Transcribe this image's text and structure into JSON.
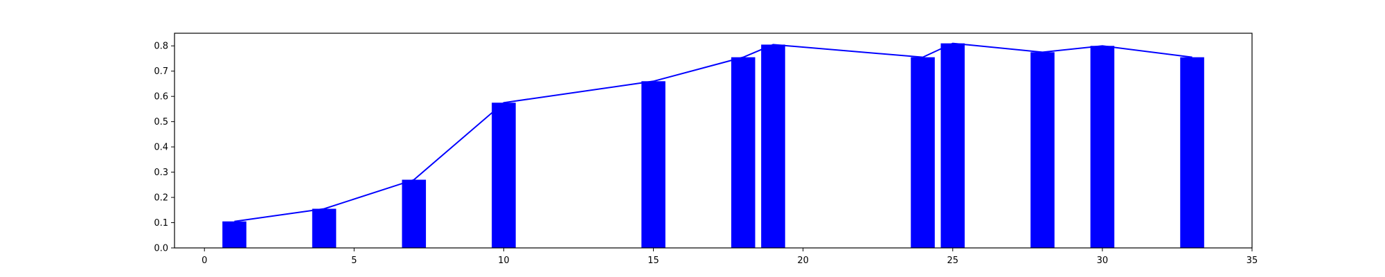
{
  "chart_data": {
    "type": "bar",
    "title": "",
    "xlabel": "",
    "ylabel": "",
    "xlim": [
      -1,
      35
    ],
    "ylim": [
      0,
      0.85
    ],
    "grid": false,
    "x_ticks": [
      0,
      5,
      10,
      15,
      20,
      25,
      30,
      35
    ],
    "y_ticks": [
      0.0,
      0.1,
      0.2,
      0.3,
      0.4,
      0.5,
      0.6,
      0.7,
      0.8
    ],
    "x_tick_labels": [
      "0",
      "5",
      "10",
      "15",
      "20",
      "25",
      "30",
      "35"
    ],
    "y_tick_labels": [
      "0.0",
      "0.1",
      "0.2",
      "0.3",
      "0.4",
      "0.5",
      "0.6",
      "0.7",
      "0.8"
    ],
    "bar_width": 0.8,
    "x": [
      1,
      4,
      7,
      10,
      15,
      18,
      19,
      24,
      25,
      28,
      30,
      33
    ],
    "values": [
      0.105,
      0.155,
      0.27,
      0.575,
      0.66,
      0.755,
      0.805,
      0.755,
      0.81,
      0.775,
      0.8,
      0.755
    ],
    "series": [
      {
        "type": "bar",
        "color": "#0000ff"
      },
      {
        "type": "line",
        "color": "#0000ff"
      }
    ]
  }
}
